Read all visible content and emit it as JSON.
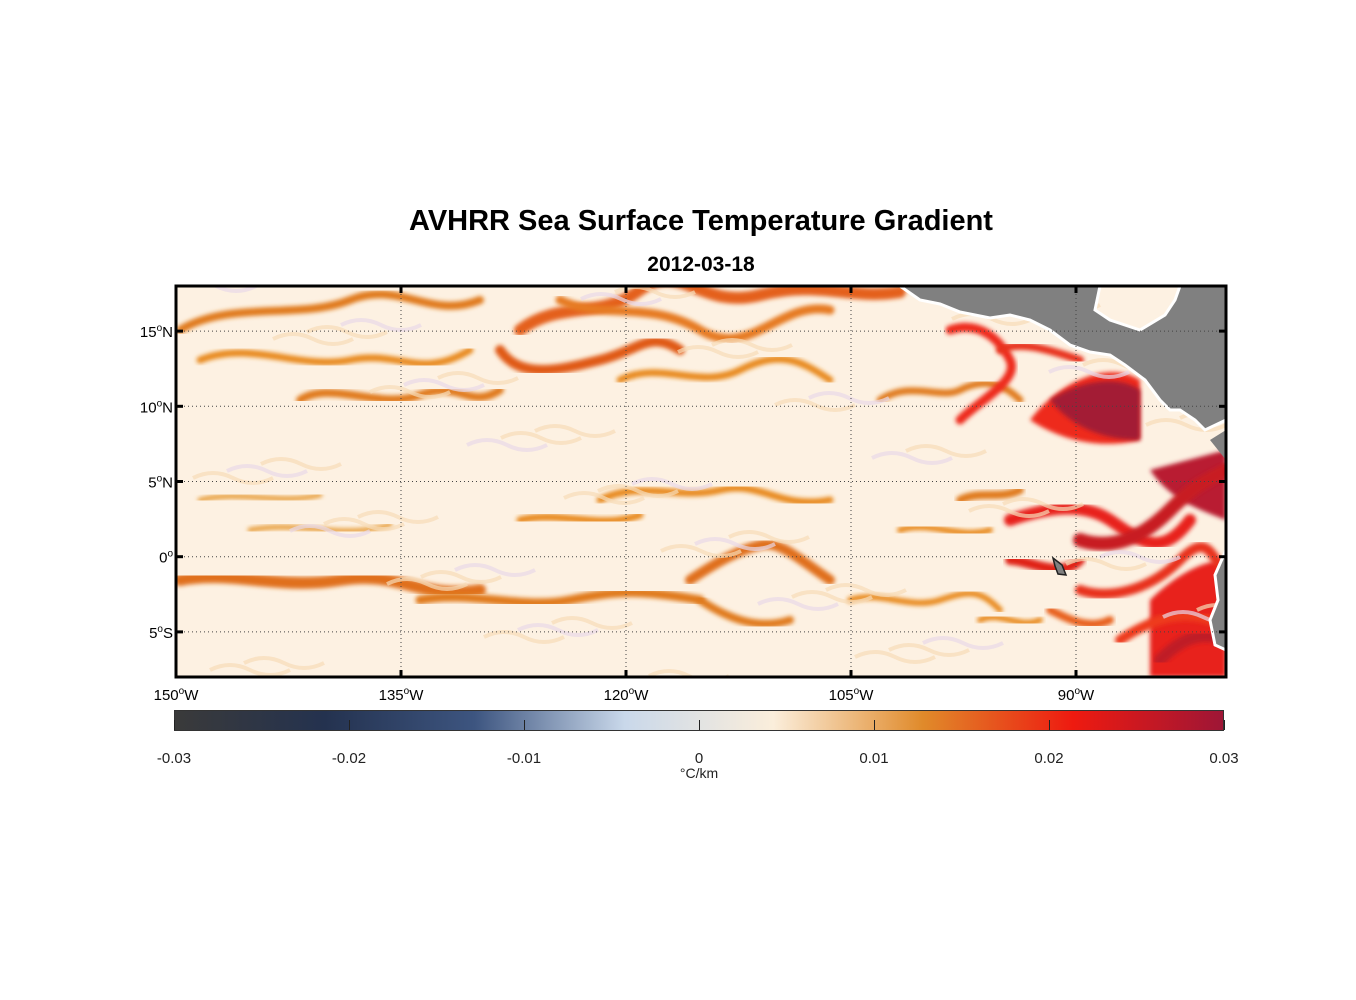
{
  "title": "AVHRR Sea Surface Temperature Gradient",
  "subtitle": "2012-03-18",
  "map": {
    "projection": "equirectangular",
    "lon_range": [
      -150,
      -80
    ],
    "lat_range": [
      -8,
      18
    ],
    "grid": "dotted",
    "land_color": "#808080",
    "lat_ticks": [
      {
        "value": 15,
        "text": "15",
        "hemi": "N"
      },
      {
        "value": 10,
        "text": "10",
        "hemi": "N"
      },
      {
        "value": 5,
        "text": "5",
        "hemi": "N"
      },
      {
        "value": 0,
        "text": "0",
        "hemi": ""
      },
      {
        "value": -5,
        "text": "5",
        "hemi": "S"
      }
    ],
    "lon_ticks": [
      {
        "value": -150,
        "text": "150",
        "hemi": "W"
      },
      {
        "value": -135,
        "text": "135",
        "hemi": "W"
      },
      {
        "value": -120,
        "text": "120",
        "hemi": "W"
      },
      {
        "value": -105,
        "text": "105",
        "hemi": "W"
      },
      {
        "value": -90,
        "text": "90",
        "hemi": "W"
      }
    ]
  },
  "colorbar": {
    "range": [
      -0.03,
      0.03
    ],
    "ticks": [
      "-0.03",
      "-0.02",
      "-0.01",
      "0",
      "0.01",
      "0.02",
      "0.03"
    ],
    "unit_label": "°C/km",
    "colors": [
      "#3a3a3a",
      "#24324f",
      "#3d5580",
      "#c9d8ea",
      "#fbeedb",
      "#e08a2a",
      "#ee1a10",
      "#9e1636"
    ]
  },
  "chart_data": {
    "type": "heatmap",
    "title": "AVHRR Sea Surface Temperature Gradient",
    "subtitle": "2012-03-18",
    "xlabel": "",
    "ylabel": "",
    "xlim": [
      -150,
      -80
    ],
    "ylim": [
      -8,
      18
    ],
    "value_range": [
      -0.03,
      0.03
    ],
    "unit": "°C/km",
    "grid": true
  }
}
